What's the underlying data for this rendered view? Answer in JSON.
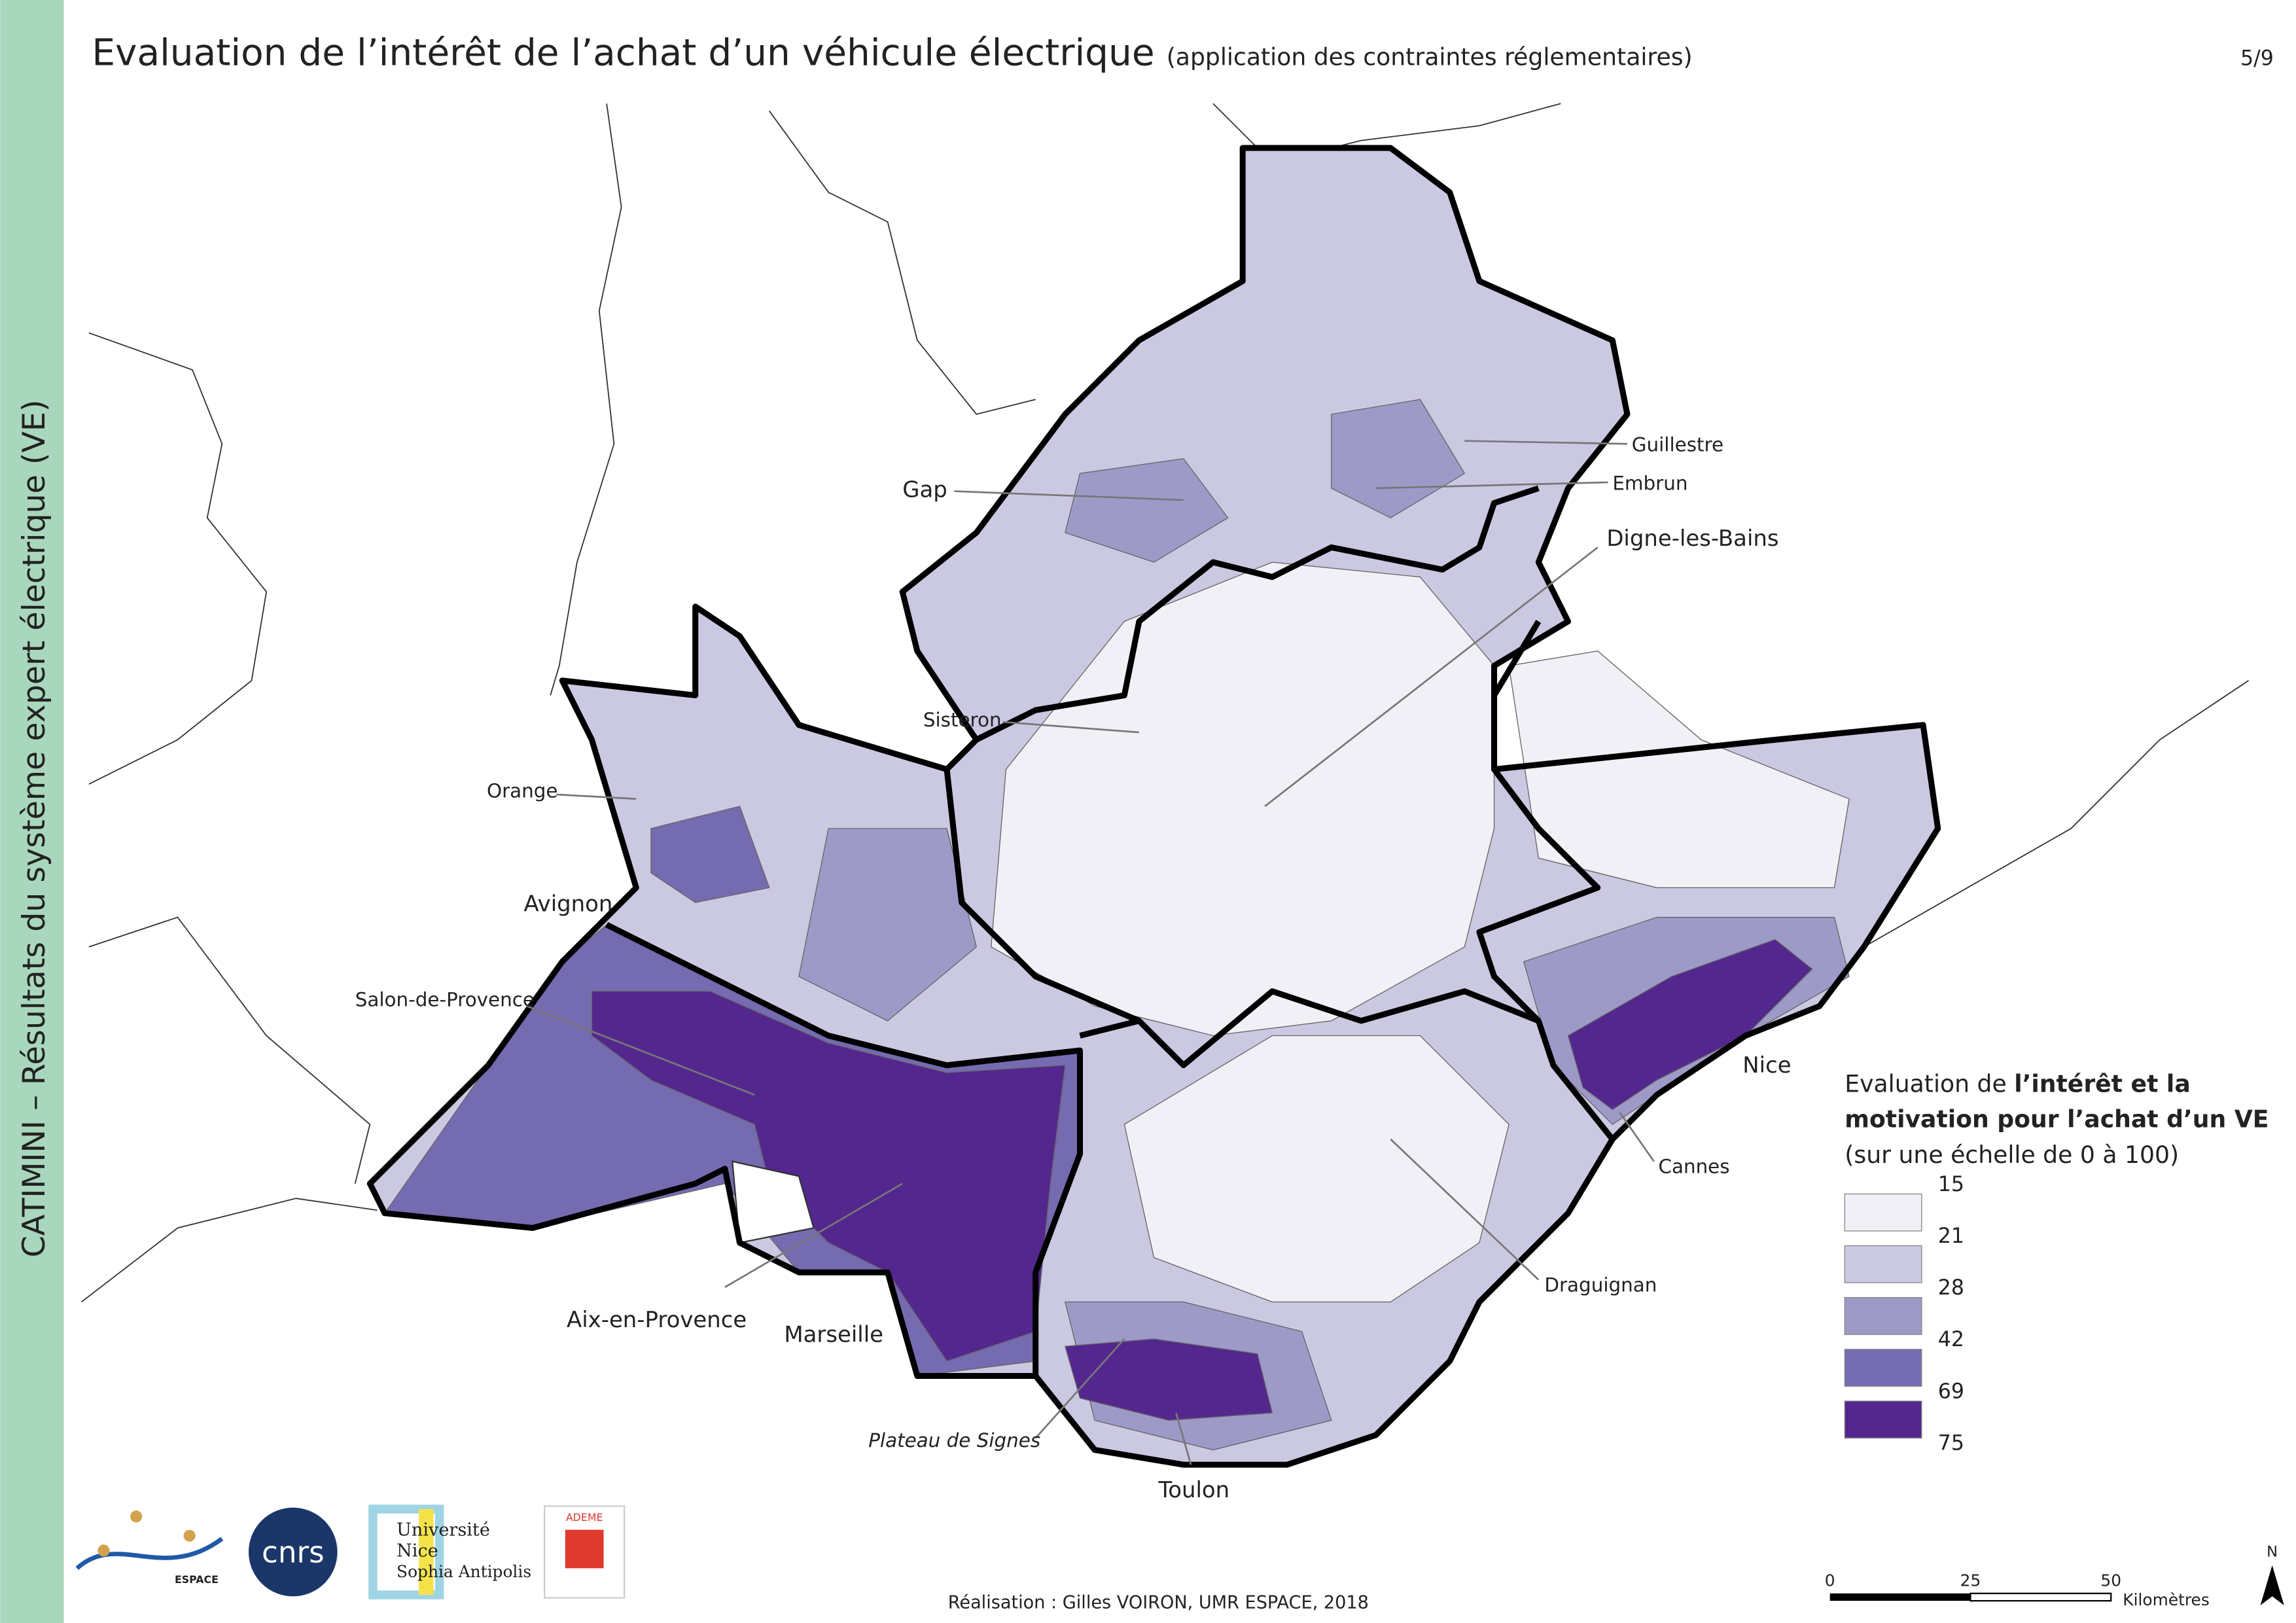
{
  "header": {
    "title": "Evaluation de l’intérêt de l’achat d’un véhicule électrique",
    "subtitle": "(application des contraintes réglementaires)",
    "page": "5/9"
  },
  "sidebar": "CATIMINI – Résultats du système expert électrique (VE)",
  "cities": {
    "gap": "Gap",
    "guillestre": "Guillestre",
    "embrun": "Embrun",
    "digne": "Digne-les-Bains",
    "sisteron": "Sisteron",
    "orange": "Orange",
    "avignon": "Avignon",
    "salon": "Salon-de-Provence",
    "aix": "Aix-en-Provence",
    "marseille": "Marseille",
    "signes": "Plateau de Signes",
    "toulon": "Toulon",
    "draguignan": "Draguignan",
    "nice": "Nice",
    "cannes": "Cannes"
  },
  "legend": {
    "title": [
      "Evaluation de ",
      "l’intérêt et la",
      "motivation pour l’achat d’un VE",
      "(sur une échelle de 0 à 100)"
    ],
    "breaks": [
      15,
      21,
      28,
      42,
      69,
      75
    ],
    "colors": [
      "#f2f0f7",
      "#cbc9e2",
      "#9e9ac8",
      "#756bb1",
      "#54278f"
    ]
  },
  "scale": {
    "ticks": [
      "0",
      "25",
      "50"
    ],
    "unit": "Kilomètres"
  },
  "north": "N",
  "logos": {
    "espace": "ESPACE",
    "cnrs": "cnrs",
    "university": [
      "Université",
      "Nice",
      "Sophia Antipolis"
    ],
    "ademe": "ADEME"
  },
  "credits": "Réalisation : Gilles VOIRON, UMR ESPACE, 2018"
}
